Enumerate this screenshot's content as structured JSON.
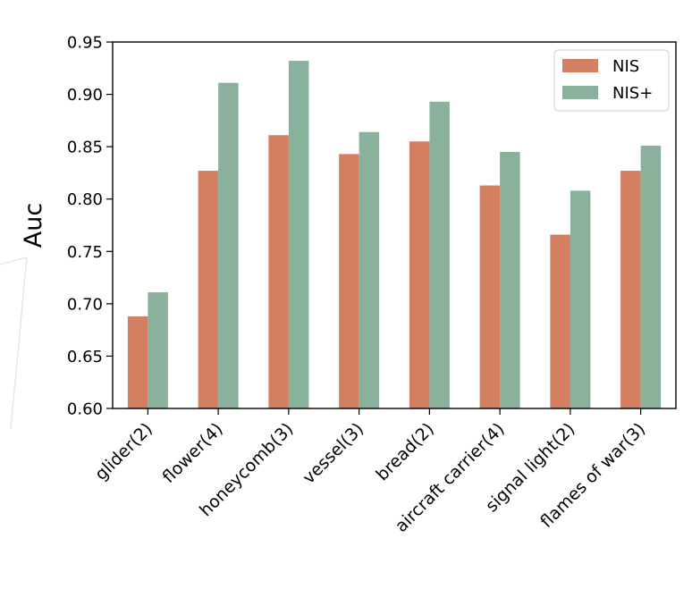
{
  "chart_data": {
    "type": "bar",
    "title": "",
    "xlabel": "",
    "ylabel": "Auc",
    "ylim": [
      0.6,
      0.95
    ],
    "yticks": [
      "0.60",
      "0.65",
      "0.70",
      "0.75",
      "0.80",
      "0.85",
      "0.90",
      "0.95"
    ],
    "categories": [
      "glider(2)",
      "flower(4)",
      "honeycomb(3)",
      "vessel(3)",
      "bread(2)",
      "aircraft carrier(4)",
      "signal light(2)",
      "flames of war(3)"
    ],
    "series": [
      {
        "name": "NIS",
        "color": "#d37f61",
        "values": [
          0.688,
          0.827,
          0.861,
          0.843,
          0.855,
          0.813,
          0.766,
          0.827
        ]
      },
      {
        "name": "NIS+",
        "color": "#8ab19b",
        "values": [
          0.711,
          0.911,
          0.932,
          0.864,
          0.893,
          0.845,
          0.808,
          0.851
        ]
      }
    ],
    "grid": false,
    "legend": "top-right"
  }
}
